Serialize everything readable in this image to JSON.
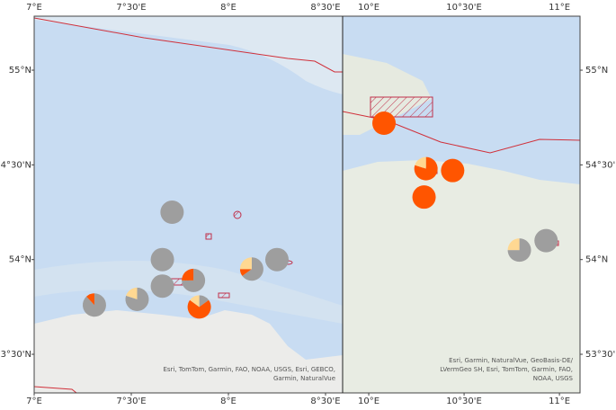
{
  "map": {
    "slice_colors": [
      "#9e9e9e",
      "#ff5500",
      "#ffd892"
    ],
    "panels": [
      {
        "xlim": [
          7,
          8.588
        ],
        "ylim": [
          53.296,
          55.285
        ],
        "xticks": [
          {
            "value": 7,
            "label": "7°E"
          },
          {
            "value": 7.5,
            "label": "7°30'E"
          },
          {
            "value": 8,
            "label": "8°E"
          },
          {
            "value": 8.5,
            "label": "8°30'E"
          }
        ],
        "yticks": [
          {
            "value": 55,
            "label": "55°N"
          },
          {
            "value": 54.5,
            "label": "54°30'N"
          },
          {
            "value": 54,
            "label": "54°N"
          },
          {
            "value": 53.5,
            "label": "53°30'N"
          }
        ],
        "attribution": [
          "Esri, TomTom, Garmin, FAO, NOAA, USGS, Esri, GEBCO,",
          "Garmin, NaturalVue"
        ],
        "markers": [
          {
            "lon": 7.71,
            "lat": 54.25,
            "values": [
              100,
              0,
              0
            ]
          },
          {
            "lon": 7.66,
            "lat": 54.0,
            "values": [
              100,
              0,
              0
            ]
          },
          {
            "lon": 7.66,
            "lat": 53.86,
            "values": [
              100,
              0,
              0
            ]
          },
          {
            "lon": 7.82,
            "lat": 53.89,
            "values": [
              75,
              25,
              0
            ]
          },
          {
            "lon": 7.85,
            "lat": 53.75,
            "values": [
              15,
              70,
              15
            ]
          },
          {
            "lon": 8.12,
            "lat": 53.95,
            "values": [
              65,
              10,
              25
            ]
          },
          {
            "lon": 8.25,
            "lat": 54.0,
            "values": [
              100,
              0,
              0
            ]
          },
          {
            "lon": 7.53,
            "lat": 53.79,
            "values": [
              80,
              0,
              20
            ]
          },
          {
            "lon": 7.31,
            "lat": 53.76,
            "values": [
              88,
              12,
              0
            ]
          }
        ]
      },
      {
        "xlim": [
          9.863,
          11.108
        ],
        "ylim": [
          53.296,
          55.285
        ],
        "xticks": [
          {
            "value": 10,
            "label": "10°E"
          },
          {
            "value": 10.5,
            "label": "10°30'E"
          },
          {
            "value": 11,
            "label": "11°E"
          }
        ],
        "yticks": [
          {
            "value": 55,
            "label": "55°N"
          },
          {
            "value": 54.5,
            "label": "54°30'N"
          },
          {
            "value": 54,
            "label": "54°N"
          },
          {
            "value": 53.5,
            "label": "53°30'N"
          }
        ],
        "attribution": [
          "Esri, Garmin, NaturalVue, GeoBasis-DE/",
          "LVermGeo SH, Esri, TomTom, Garmin, FAO,",
          "NOAA, USGS"
        ],
        "markers": [
          {
            "lon": 10.08,
            "lat": 54.72,
            "values": [
              0,
              100,
              0
            ]
          },
          {
            "lon": 10.3,
            "lat": 54.48,
            "values": [
              0,
              80,
              20
            ]
          },
          {
            "lon": 10.44,
            "lat": 54.47,
            "values": [
              0,
              100,
              0
            ]
          },
          {
            "lon": 10.29,
            "lat": 54.33,
            "values": [
              0,
              100,
              0
            ]
          },
          {
            "lon": 10.79,
            "lat": 54.05,
            "values": [
              75,
              0,
              25
            ]
          },
          {
            "lon": 10.93,
            "lat": 54.1,
            "values": [
              100,
              0,
              0
            ]
          }
        ]
      }
    ]
  }
}
